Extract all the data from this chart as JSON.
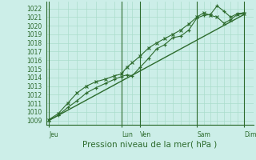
{
  "background_color": "#cceee8",
  "plot_bg_color": "#cceee8",
  "grid_color": "#aaddcc",
  "line_color": "#2d6b2d",
  "marker_color": "#2d6b2d",
  "title": "Pression niveau de la mer( hPa )",
  "ylim": [
    1008.5,
    1022.8
  ],
  "yticks": [
    1009,
    1010,
    1011,
    1012,
    1013,
    1014,
    1015,
    1016,
    1017,
    1018,
    1019,
    1020,
    1021,
    1022
  ],
  "xtick_labels": [
    "Jeu",
    "Lun",
    "Ven",
    "Sam",
    "Dim"
  ],
  "xtick_positions": [
    0.0,
    5.4,
    6.8,
    11.0,
    14.5
  ],
  "xlim": [
    -0.2,
    15.2
  ],
  "series1": {
    "x": [
      0,
      0.7,
      1.4,
      2.1,
      2.8,
      3.5,
      4.2,
      4.9,
      5.4,
      5.8,
      6.2,
      6.8,
      7.4,
      8.0,
      8.6,
      9.2,
      9.8,
      10.4,
      11.0,
      11.5,
      12.0,
      12.5,
      13.0,
      13.5,
      14.0,
      14.5
    ],
    "y": [
      1009.0,
      1009.6,
      1010.5,
      1011.3,
      1012.2,
      1012.8,
      1013.3,
      1013.8,
      1014.1,
      1014.3,
      1014.2,
      1015.2,
      1016.2,
      1017.3,
      1017.8,
      1018.6,
      1018.8,
      1019.5,
      1020.9,
      1021.2,
      1021.3,
      1022.3,
      1021.7,
      1021.0,
      1021.4,
      1021.5
    ]
  },
  "series2": {
    "x": [
      0,
      0.7,
      1.4,
      2.1,
      2.8,
      3.5,
      4.2,
      4.9,
      5.4,
      5.8,
      6.2,
      6.8,
      7.4,
      8.0,
      8.6,
      9.2,
      9.8,
      10.4,
      11.0,
      11.5,
      12.0,
      12.5,
      13.0,
      13.5,
      14.0,
      14.5
    ],
    "y": [
      1009.1,
      1009.8,
      1011.0,
      1012.2,
      1013.0,
      1013.5,
      1013.8,
      1014.2,
      1014.4,
      1015.2,
      1015.7,
      1016.5,
      1017.4,
      1018.0,
      1018.5,
      1019.0,
      1019.5,
      1020.2,
      1021.0,
      1021.5,
      1021.2,
      1021.0,
      1020.3,
      1020.7,
      1021.3,
      1021.4
    ]
  },
  "series3": {
    "x": [
      0,
      14.5
    ],
    "y": [
      1009.0,
      1021.3
    ]
  },
  "vlines_dark": [
    0.0,
    5.4,
    6.8,
    11.0,
    14.5
  ],
  "vlines_light": [
    0.7,
    1.4,
    2.1,
    2.8,
    3.5,
    4.2,
    4.9,
    5.8,
    6.2,
    7.4,
    8.0,
    8.6,
    9.2,
    9.8,
    10.4,
    11.5,
    12.0,
    12.5,
    13.0,
    13.5,
    14.0
  ],
  "tick_fontsize": 5.5,
  "title_fontsize": 7.5
}
